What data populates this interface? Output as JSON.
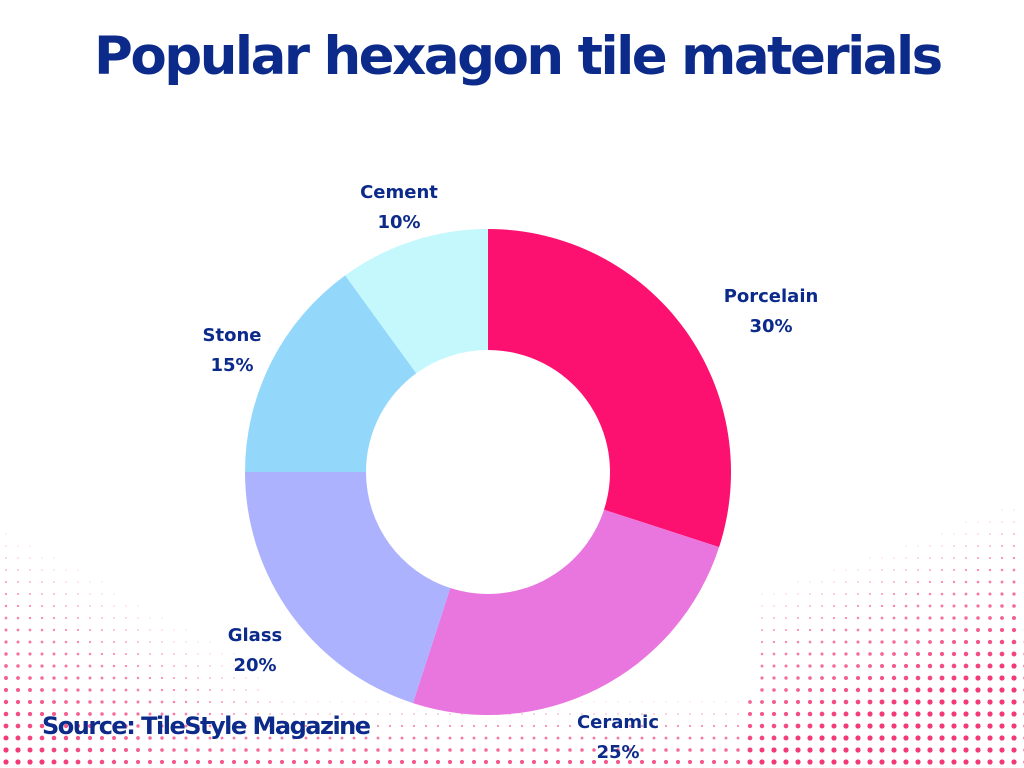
{
  "chart_data": {
    "type": "pie",
    "variant": "donut",
    "title": "Popular hexagon tile materials",
    "categories": [
      "Porcelain",
      "Ceramic",
      "Glass",
      "Stone",
      "Cement"
    ],
    "values": [
      30,
      25,
      20,
      15,
      10
    ],
    "value_labels": [
      "30%",
      "25%",
      "20%",
      "15%",
      "10%"
    ],
    "colors": [
      "#fc1170",
      "#e975de",
      "#acb2fe",
      "#93d8fb",
      "#c4f8fd"
    ],
    "start_angle": "12 o'clock",
    "direction": "clockwise",
    "legend": "none",
    "source": "Source: TileStyle Magazine"
  },
  "theme": {
    "title_color": "#0b2a8a",
    "label_color": "#0b2a8a",
    "dot_color": "#f0246a",
    "background": "#ffffff"
  }
}
